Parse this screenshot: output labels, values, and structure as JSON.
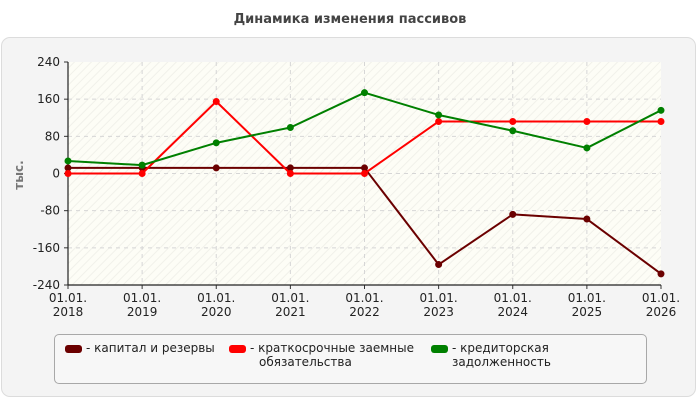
{
  "chart_data": {
    "type": "line",
    "title": "Динамика изменения пассивов",
    "ylabel": "тыс.",
    "xlabel": "",
    "categories": [
      "01.01. 2018",
      "01.01. 2019",
      "01.01. 2020",
      "01.01. 2021",
      "01.01. 2022",
      "01.01. 2023",
      "01.01. 2024",
      "01.01. 2025",
      "01.01. 2026"
    ],
    "x_ticks": [
      [
        "01.01.",
        "2018"
      ],
      [
        "01.01.",
        "2019"
      ],
      [
        "01.01.",
        "2020"
      ],
      [
        "01.01.",
        "2021"
      ],
      [
        "01.01.",
        "2022"
      ],
      [
        "01.01.",
        "2023"
      ],
      [
        "01.01.",
        "2024"
      ],
      [
        "01.01.",
        "2025"
      ],
      [
        "01.01.",
        "2026"
      ]
    ],
    "ylim": [
      -240,
      240
    ],
    "y_ticks": [
      240,
      160,
      80,
      0,
      -80,
      -160,
      -240
    ],
    "grid": true,
    "legend_position": "bottom",
    "series": [
      {
        "name": "капитал и резервы",
        "legend_lines": [
          "капитал и резервы"
        ],
        "color": "#6b0000",
        "values": [
          12,
          12,
          12,
          12,
          12,
          -196,
          -88,
          -98,
          -216
        ]
      },
      {
        "name": "краткосрочные заемные обязательства",
        "legend_lines": [
          "краткосрочные заемные",
          "обязательства"
        ],
        "color": "#ff0000",
        "values": [
          0,
          0,
          155,
          0,
          0,
          112,
          112,
          112,
          112
        ]
      },
      {
        "name": "кредиторская задолженность",
        "legend_lines": [
          "кредиторская задолженность"
        ],
        "color": "#008000",
        "values": [
          27,
          18,
          66,
          99,
          174,
          126,
          92,
          55,
          136
        ]
      }
    ]
  }
}
